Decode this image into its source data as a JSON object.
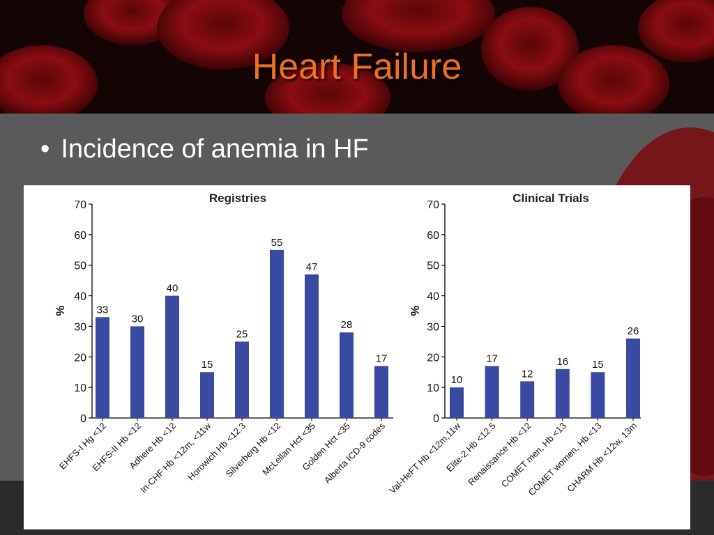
{
  "slide": {
    "title": "Heart Failure",
    "bullet": "Incidence of anemia in HF"
  },
  "colors": {
    "bar": "#3a4aa3",
    "title": "#ee6f22",
    "banner": "#140404",
    "cell": "#8a0d12"
  },
  "chart_data": [
    {
      "type": "bar",
      "title": "Registries",
      "ylabel": "%",
      "ylim": [
        0,
        70
      ],
      "yticks": [
        0,
        10,
        20,
        30,
        40,
        50,
        60,
        70
      ],
      "categories": [
        "EHFS-I Hg <12",
        "EHFS-II Hb <12",
        "Adhere Hb <12",
        "In-CHF Hb <12m, <11w",
        "Horowich Hb <12.3",
        "Silverberg Hb <12",
        "McLellan Hct <35",
        "Golden Hct <35",
        "Alberta ICD-9 codes"
      ],
      "values": [
        33,
        30,
        40,
        15,
        25,
        55,
        47,
        28,
        17
      ]
    },
    {
      "type": "bar",
      "title": "Clinical Trials",
      "ylabel": "%",
      "ylim": [
        0,
        70
      ],
      "yticks": [
        0,
        10,
        20,
        30,
        40,
        50,
        60,
        70
      ],
      "categories": [
        "Val-HeFT Hb <12m,11w",
        "Elite-2 Hb <12.5",
        "Renaissance Hb <12",
        "COMET men, Hb <13",
        "COMET women, Hb <13",
        "CHARM Hb <12w, 13m"
      ],
      "values": [
        10,
        17,
        12,
        16,
        15,
        26
      ]
    }
  ]
}
